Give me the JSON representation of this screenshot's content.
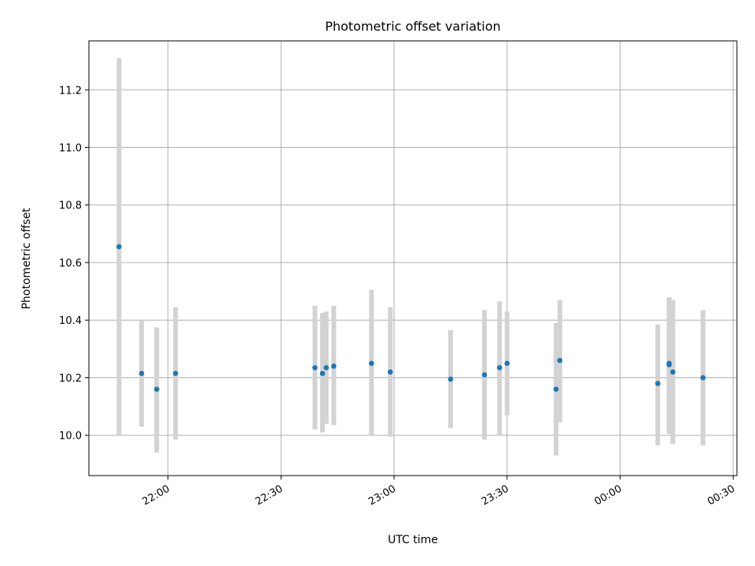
{
  "chart_data": {
    "type": "scatter",
    "title": "Photometric offset variation",
    "xlabel": "UTC time",
    "ylabel": "Photometric offset",
    "grid": true,
    "legend": "none",
    "colors": {
      "points": "#1f77b4",
      "error_bars": "#d3d3d3",
      "grid": "#b0b0b0",
      "axes": "#000000"
    },
    "x_unit": "UTC time (HH:MM, crossing midnight)",
    "xlim": [
      "21:39",
      "00:31"
    ],
    "ylim": [
      9.86,
      11.37
    ],
    "x_ticks": [
      "22:00",
      "22:30",
      "23:00",
      "23:30",
      "00:00",
      "00:30"
    ],
    "y_ticks": [
      "10.0",
      "10.2",
      "10.4",
      "10.6",
      "10.8",
      "11.0",
      "11.2"
    ],
    "points": [
      {
        "x": "21:47",
        "y": 10.655,
        "low": 10.0,
        "high": 11.31
      },
      {
        "x": "21:53",
        "y": 10.215,
        "low": 10.03,
        "high": 10.4
      },
      {
        "x": "21:57",
        "y": 10.16,
        "low": 9.94,
        "high": 10.375
      },
      {
        "x": "22:02",
        "y": 10.215,
        "low": 9.985,
        "high": 10.445
      },
      {
        "x": "22:39",
        "y": 10.235,
        "low": 10.02,
        "high": 10.45
      },
      {
        "x": "22:41",
        "y": 10.215,
        "low": 10.01,
        "high": 10.425
      },
      {
        "x": "22:42",
        "y": 10.235,
        "low": 10.04,
        "high": 10.43
      },
      {
        "x": "22:44",
        "y": 10.24,
        "low": 10.035,
        "high": 10.45
      },
      {
        "x": "22:54",
        "y": 10.25,
        "low": 10.0,
        "high": 10.505
      },
      {
        "x": "22:59",
        "y": 10.22,
        "low": 9.995,
        "high": 10.445
      },
      {
        "x": "23:15",
        "y": 10.195,
        "low": 10.025,
        "high": 10.365
      },
      {
        "x": "23:24",
        "y": 10.21,
        "low": 9.985,
        "high": 10.435
      },
      {
        "x": "23:28",
        "y": 10.235,
        "low": 10.0,
        "high": 10.465
      },
      {
        "x": "23:30",
        "y": 10.25,
        "low": 10.07,
        "high": 10.43
      },
      {
        "x": "23:43",
        "y": 10.16,
        "low": 9.93,
        "high": 10.39
      },
      {
        "x": "23:44",
        "y": 10.26,
        "low": 10.045,
        "high": 10.47
      },
      {
        "x": "00:10",
        "y": 10.18,
        "low": 9.965,
        "high": 10.385
      },
      {
        "x": "00:13",
        "y": 10.25,
        "low": 10.005,
        "high": 10.48
      },
      {
        "x": "00:13",
        "y": 10.245,
        "low": 10.01,
        "high": 10.475
      },
      {
        "x": "00:14",
        "y": 10.22,
        "low": 9.97,
        "high": 10.47
      },
      {
        "x": "00:22",
        "y": 10.2,
        "low": 9.965,
        "high": 10.435
      }
    ]
  }
}
